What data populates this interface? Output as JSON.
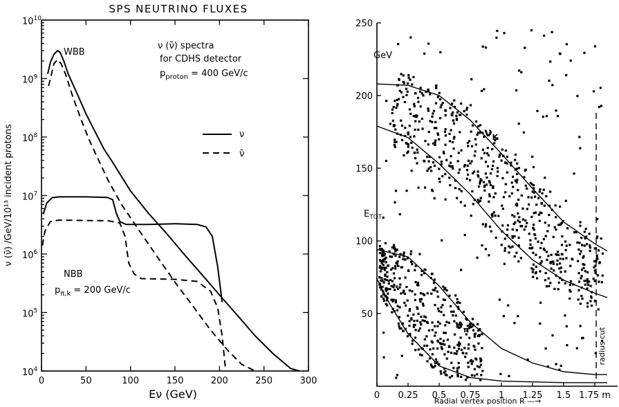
{
  "chart_data": [
    {
      "type": "line",
      "title": "SPS NEUTRINO FLUXES",
      "xlabel": "Eν (GeV)",
      "ylabel": "ν (ν̄) /GeV/10¹³ incident protons",
      "ylog": true,
      "xlim": [
        0,
        300
      ],
      "ylim": [
        10000,
        10000000000
      ],
      "x_ticks": [
        "0",
        "50",
        "100",
        "150",
        "200",
        "250",
        "300"
      ],
      "y_ticks": [
        {
          "base": "10",
          "exp": "4",
          "value": 10000
        },
        {
          "base": "10",
          "exp": "5",
          "value": 100000
        },
        {
          "base": "10",
          "exp": "6",
          "value": 1000000
        },
        {
          "base": "10",
          "exp": "7",
          "value": 10000000
        },
        {
          "base": "10",
          "exp": "8",
          "value": 100000000
        },
        {
          "base": "10",
          "exp": "9",
          "value": 1000000000
        },
        {
          "base": "10",
          "exp": "10",
          "value": 10000000000
        }
      ],
      "annotations": {
        "spectra_line1": "ν (ν̄) spectra",
        "spectra_line2": "for CDHS detector",
        "proton_label": "p",
        "proton_sub": "proton",
        "proton_value": " = 400 GeV/c",
        "wbb": "WBB",
        "nbb": "NBB",
        "nbb_p": "p",
        "nbb_sub": "π,k",
        "nbb_value": " = 200 GeV/c"
      },
      "legend": [
        {
          "symbol": "ν",
          "style": "solid"
        },
        {
          "symbol": "ν̄",
          "style": "dashed"
        }
      ],
      "series": [
        {
          "id": "wbb-nu",
          "style": "solid",
          "points": [
            [
              7,
              1200000000.0
            ],
            [
              10,
              1900000000.0
            ],
            [
              14,
              2600000000.0
            ],
            [
              18,
              3000000000.0
            ],
            [
              21,
              2800000000.0
            ],
            [
              25,
              2000000000.0
            ],
            [
              30,
              1200000000.0
            ],
            [
              40,
              550000000.0
            ],
            [
              50,
              250000000.0
            ],
            [
              60,
              125000000.0
            ],
            [
              70,
              63000000.0
            ],
            [
              80,
              37000000.0
            ],
            [
              90,
              21000000.0
            ],
            [
              100,
              12000000.0
            ],
            [
              120,
              5000000.0
            ],
            [
              140,
              2300000.0
            ],
            [
              160,
              1000000.0
            ],
            [
              180,
              450000.0
            ],
            [
              200,
              200000.0
            ],
            [
              220,
              90000.0
            ],
            [
              240,
              40000.0
            ],
            [
              260,
              20000.0
            ],
            [
              280,
              11000.0
            ],
            [
              290,
              10000.0
            ]
          ]
        },
        {
          "id": "wbb-nubar",
          "style": "dashed",
          "points": [
            [
              8,
              750000000.0
            ],
            [
              10,
              1000000000.0
            ],
            [
              14,
              1800000000.0
            ],
            [
              18,
              2100000000.0
            ],
            [
              22,
              1800000000.0
            ],
            [
              27,
              1200000000.0
            ],
            [
              35,
              500000000.0
            ],
            [
              45,
              190000000.0
            ],
            [
              55,
              80000000.0
            ],
            [
              65,
              38000000.0
            ],
            [
              75,
              18000000.0
            ],
            [
              90,
              7000000.0
            ],
            [
              110,
              2500000.0
            ],
            [
              130,
              900000.0
            ],
            [
              150,
              330000.0
            ],
            [
              170,
              130000.0
            ],
            [
              190,
              50000.0
            ],
            [
              210,
              22000.0
            ],
            [
              225,
              13000.0
            ],
            [
              240,
              10000.0
            ]
          ]
        },
        {
          "id": "nbb-nu",
          "style": "solid",
          "points": [
            [
              2,
              4800000.0
            ],
            [
              6,
              7500000.0
            ],
            [
              12,
              9200000.0
            ],
            [
              20,
              9500000.0
            ],
            [
              50,
              9500000.0
            ],
            [
              74,
              9300000.0
            ],
            [
              80,
              8500000.0
            ],
            [
              84,
              5000000.0
            ],
            [
              88,
              3600000.0
            ],
            [
              95,
              3200000.0
            ],
            [
              120,
              3200000.0
            ],
            [
              150,
              3300000.0
            ],
            [
              175,
              3200000.0
            ],
            [
              185,
              2900000.0
            ],
            [
              192,
              2000000.0
            ],
            [
              198,
              600000.0
            ],
            [
              202,
              200000.0
            ],
            [
              203,
              150000.0
            ]
          ]
        },
        {
          "id": "nbb-nubar",
          "style": "dashed",
          "points": [
            [
              1,
              1400000.0
            ],
            [
              4,
              2500000.0
            ],
            [
              10,
              3600000.0
            ],
            [
              20,
              3800000.0
            ],
            [
              75,
              3700000.0
            ],
            [
              88,
              3400000.0
            ],
            [
              94,
              2000000.0
            ],
            [
              98,
              700000.0
            ],
            [
              104,
              460000.0
            ],
            [
              112,
              380000.0
            ],
            [
              150,
              370000.0
            ],
            [
              175,
              340000.0
            ],
            [
              190,
              230000.0
            ],
            [
              198,
              120000.0
            ],
            [
              203,
              40000.0
            ],
            [
              207,
              10000.0
            ]
          ]
        }
      ]
    },
    {
      "type": "scatter",
      "xlabel": "Radial  vertex  position  R —→",
      "ylabel_main": "E",
      "ylabel_sub": "TOT",
      "y_unit": "GeV",
      "xlim": [
        0,
        1.8
      ],
      "ylim": [
        0,
        250
      ],
      "x_ticks": [
        "0",
        "0.25",
        "0.5",
        "0.75",
        "1",
        "1.25",
        "1.5",
        "1.75 m"
      ],
      "y_ticks": [
        "50",
        "100",
        "150",
        "200",
        "250"
      ],
      "curve_labels": {
        "k_base": "ν",
        "k_sub": "K",
        "pi_base": "ν",
        "pi_sub": "π"
      },
      "radius_cut": {
        "r": 1.75,
        "label": "radius cut"
      },
      "curves": [
        {
          "id": "k-upper",
          "points": [
            [
              0.0,
              208
            ],
            [
              0.25,
              207
            ],
            [
              0.5,
              200
            ],
            [
              0.75,
              183
            ],
            [
              1.0,
              160
            ],
            [
              1.25,
              136
            ],
            [
              1.5,
              113
            ],
            [
              1.75,
              98
            ],
            [
              1.85,
              93
            ]
          ]
        },
        {
          "id": "k-lower",
          "points": [
            [
              0.0,
              179
            ],
            [
              0.25,
              171
            ],
            [
              0.5,
              153
            ],
            [
              0.75,
              132
            ],
            [
              1.0,
              107
            ],
            [
              1.25,
              87
            ],
            [
              1.5,
              73
            ],
            [
              1.75,
              64
            ],
            [
              1.85,
              61
            ]
          ]
        },
        {
          "id": "pi-upper",
          "points": [
            [
              0.0,
              94
            ],
            [
              0.25,
              89
            ],
            [
              0.5,
              69
            ],
            [
              0.75,
              44
            ],
            [
              1.0,
              26
            ],
            [
              1.25,
              16
            ],
            [
              1.5,
              10
            ],
            [
              1.75,
              8
            ],
            [
              1.85,
              8
            ]
          ]
        },
        {
          "id": "pi-lower",
          "points": [
            [
              0.0,
              74
            ],
            [
              0.1,
              57
            ],
            [
              0.25,
              36
            ],
            [
              0.5,
              14
            ],
            [
              0.75,
              6
            ],
            [
              1.0,
              3.5
            ],
            [
              1.25,
              3
            ],
            [
              1.5,
              2.5
            ],
            [
              1.85,
              2.5
            ]
          ]
        }
      ],
      "points": "generated: ~1000 events; dense band between the nu_K curves (E 60-200 GeV, R 0.15-1.8 m) and between the nu_pi curves (E 10-95 GeV, R 0-0.8 m), plus sparse background"
    }
  ]
}
